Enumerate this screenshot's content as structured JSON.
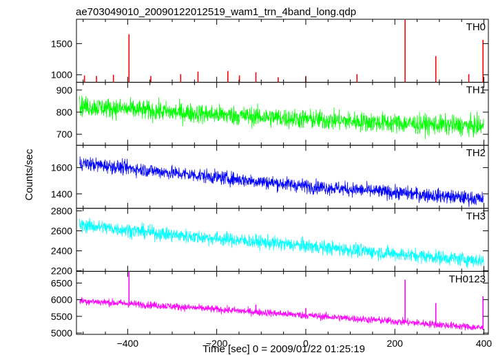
{
  "chart_data": {
    "type": "line",
    "title": "ae703049010_20090122012519_wam1_trn_4band_long.qdp",
    "ylabel": "Counts/sec",
    "xlabel": "Time [sec] 0 = 2009/01/22 01:25:19",
    "xlim": [
      -515,
      410
    ],
    "xticks": [
      -400,
      -200,
      0,
      200,
      400
    ],
    "panels": [
      {
        "name": "TH0",
        "color": "#ff0000",
        "ylim": [
          880,
          1890
        ],
        "yticks": [
          1000,
          1500
        ],
        "base": [
          [
            -508,
            850
          ],
          [
            -300,
            830
          ],
          [
            0,
            810
          ],
          [
            200,
            800
          ],
          [
            400,
            790
          ]
        ],
        "noise": 22,
        "spikes": [
          [
            -497,
            990
          ],
          [
            -470,
            980
          ],
          [
            -432,
            1000
          ],
          [
            -397,
            1650
          ],
          [
            -348,
            980
          ],
          [
            -281,
            1010
          ],
          [
            -242,
            1050
          ],
          [
            -175,
            1060
          ],
          [
            -149,
            990
          ],
          [
            -112,
            1040
          ],
          [
            -62,
            960
          ],
          [
            0,
            980
          ],
          [
            115,
            1010
          ],
          [
            223,
            1880
          ],
          [
            292,
            1300
          ],
          [
            366,
            1010
          ],
          [
            398,
            1560
          ]
        ]
      },
      {
        "name": "TH1",
        "color": "#00ff00",
        "ylim": [
          650,
          935
        ],
        "yticks": [
          700,
          800,
          900
        ],
        "base": [
          [
            -508,
            828
          ],
          [
            -300,
            800
          ],
          [
            0,
            768
          ],
          [
            200,
            750
          ],
          [
            400,
            735
          ]
        ],
        "noise": 32,
        "spikes": []
      },
      {
        "name": "TH2",
        "color": "#0000ff",
        "ylim": [
          1290,
          1770
        ],
        "yticks": [
          1400,
          1600
        ],
        "base": [
          [
            -508,
            1635
          ],
          [
            -300,
            1560
          ],
          [
            0,
            1460
          ],
          [
            200,
            1410
          ],
          [
            400,
            1360
          ]
        ],
        "noise": 38,
        "spikes": []
      },
      {
        "name": "TH3",
        "color": "#00ffff",
        "ylim": [
          2195,
          2825
        ],
        "yticks": [
          2200,
          2400,
          2600,
          2800
        ],
        "base": [
          [
            -508,
            2660
          ],
          [
            -300,
            2560
          ],
          [
            0,
            2450
          ],
          [
            200,
            2370
          ],
          [
            400,
            2300
          ]
        ],
        "noise": 50,
        "spikes": []
      },
      {
        "name": "TH0123",
        "color": "#ff00ff",
        "ylim": [
          4960,
          6850
        ],
        "yticks": [
          5000,
          5500,
          6000,
          6500
        ],
        "base": [
          [
            -508,
            5970
          ],
          [
            -300,
            5800
          ],
          [
            0,
            5530
          ],
          [
            200,
            5350
          ],
          [
            400,
            5150
          ]
        ],
        "noise": 80,
        "spikes": [
          [
            -397,
            6850
          ],
          [
            -112,
            5850
          ],
          [
            0,
            5750
          ],
          [
            223,
            6600
          ],
          [
            292,
            5900
          ],
          [
            398,
            6100
          ]
        ]
      }
    ]
  }
}
